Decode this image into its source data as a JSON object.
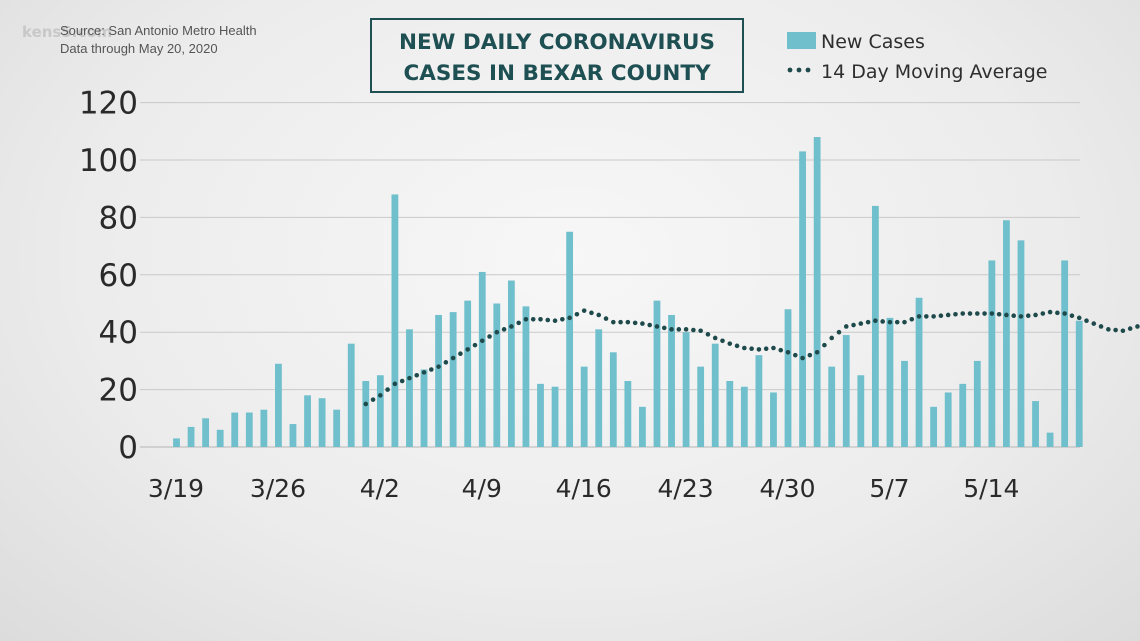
{
  "source": {
    "line1": "Source: San Antonio Metro Health",
    "line2": "Data through May 20, 2020"
  },
  "logo": "kens5.com",
  "colors": {
    "bar": "#70bfcc",
    "average": "#1f4a4c",
    "title": "#1e4f52",
    "grid": "#c9c9c9"
  },
  "chart_data": {
    "type": "bar",
    "title_lines": [
      "NEW DAILY CORONAVIRUS",
      "CASES IN BEXAR COUNTY"
    ],
    "xlabel": "",
    "ylabel": "",
    "ylim": [
      0,
      120
    ],
    "yticks": [
      0,
      20,
      40,
      60,
      80,
      100,
      120
    ],
    "grid": true,
    "legend_position": "top-right",
    "xtick_labels": [
      {
        "label": "3/19",
        "index": 0
      },
      {
        "label": "3/26",
        "index": 7
      },
      {
        "label": "4/2",
        "index": 14
      },
      {
        "label": "4/9",
        "index": 21
      },
      {
        "label": "4/16",
        "index": 28
      },
      {
        "label": "4/23",
        "index": 35
      },
      {
        "label": "4/30",
        "index": 42
      },
      {
        "label": "5/7",
        "index": 49
      },
      {
        "label": "5/14",
        "index": 56
      }
    ],
    "series": [
      {
        "name": "New Cases",
        "kind": "bar",
        "values": [
          3,
          7,
          10,
          6,
          12,
          12,
          13,
          29,
          8,
          18,
          17,
          13,
          36,
          23,
          25,
          88,
          41,
          27,
          46,
          47,
          51,
          61,
          50,
          58,
          49,
          22,
          21,
          75,
          28,
          41,
          33,
          23,
          14,
          51,
          46,
          40,
          28,
          36,
          23,
          21,
          32,
          19,
          48,
          103,
          108,
          28,
          39,
          25,
          84,
          45,
          30,
          52,
          14,
          19,
          22,
          30,
          65,
          79,
          72,
          16,
          5,
          65,
          44
        ]
      },
      {
        "name": "14 Day Moving Average",
        "kind": "dotted-line",
        "start_index": 13,
        "values": [
          15,
          18,
          22,
          24,
          26,
          28,
          31,
          34,
          37,
          40,
          42,
          44.5,
          44.5,
          44,
          45,
          47.5,
          46,
          43.5,
          43.5,
          43,
          42,
          41,
          41,
          40.5,
          38,
          36,
          34.5,
          34,
          34.5,
          33,
          31,
          33,
          38,
          42,
          43,
          44,
          43.5,
          43.5,
          45.5,
          45.5,
          46,
          46.5,
          46.5,
          46.5,
          46,
          45.5,
          46,
          47,
          46.5,
          45,
          43,
          41,
          40.5,
          42,
          39.5
        ]
      }
    ]
  }
}
